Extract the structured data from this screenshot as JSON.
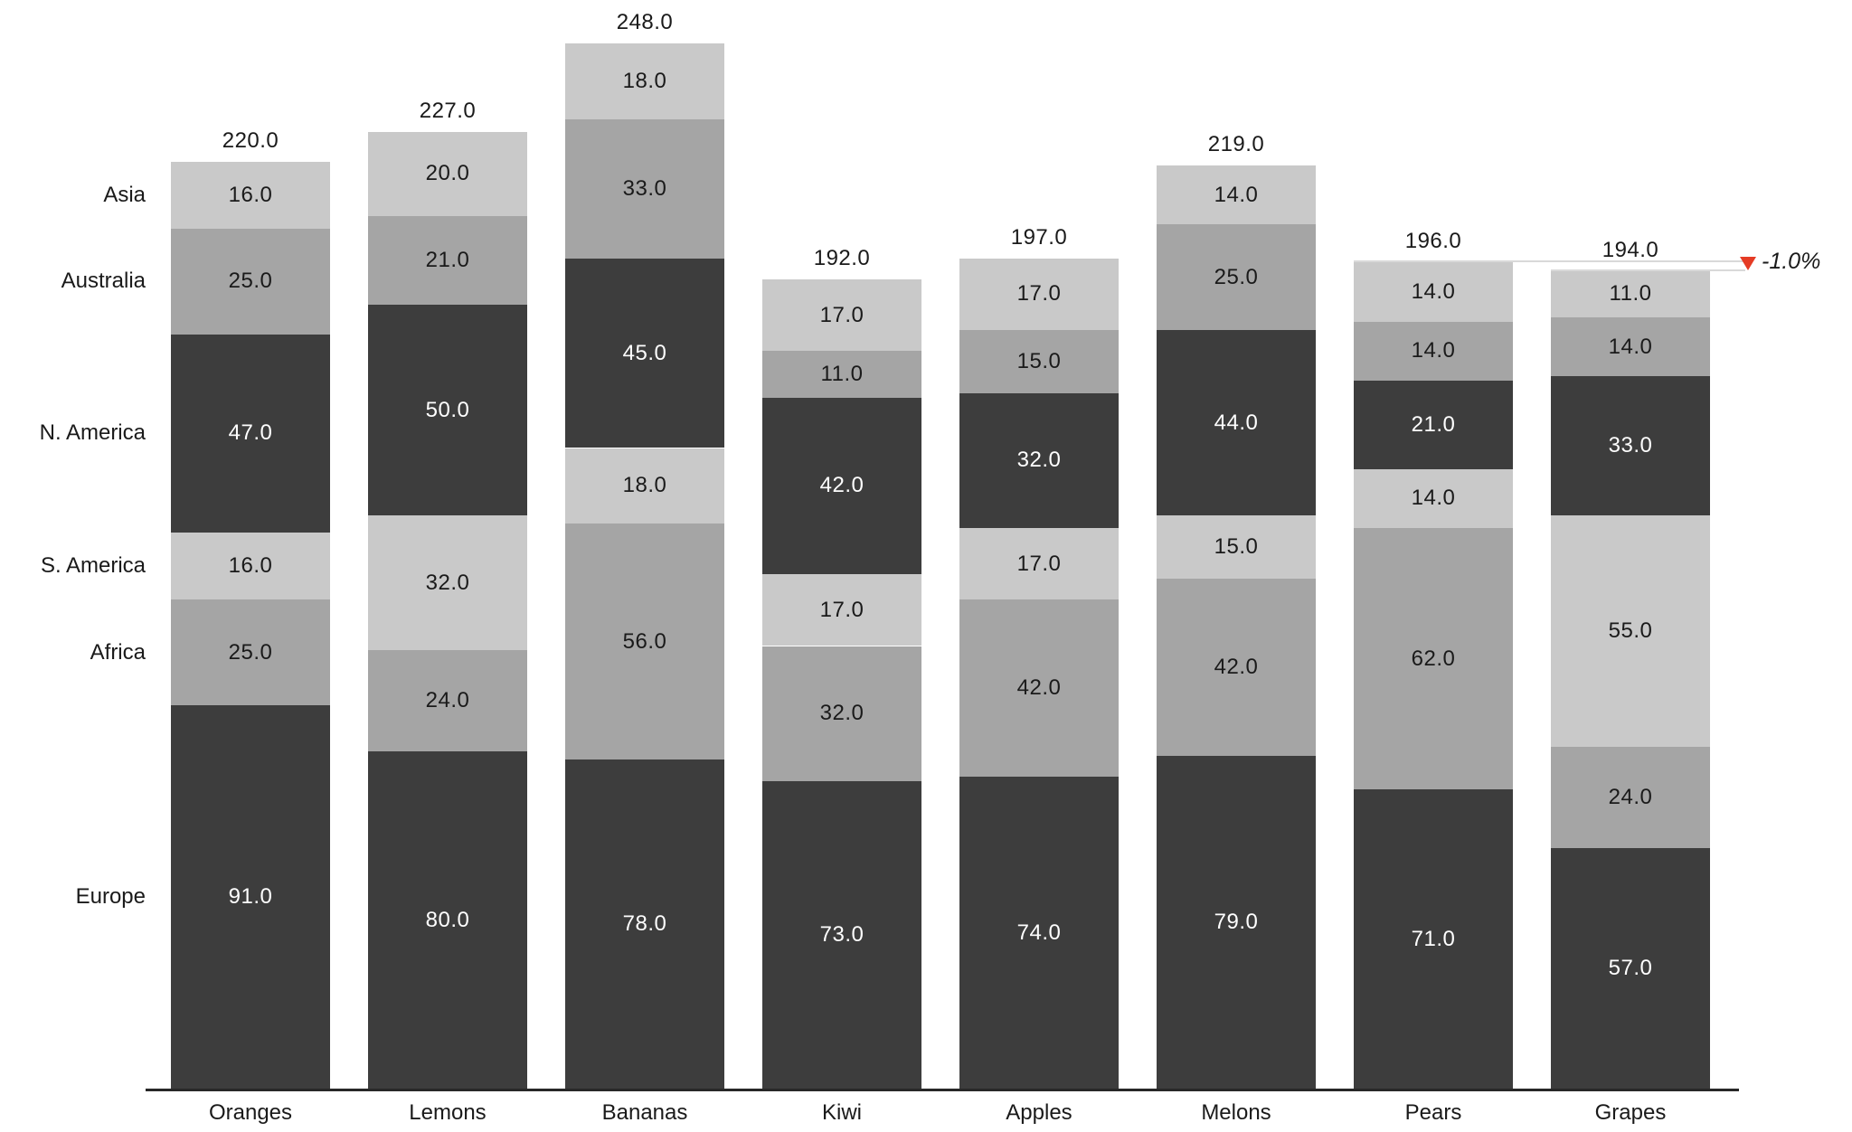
{
  "chart_data": {
    "type": "bar",
    "subtype": "stacked-column",
    "title": "",
    "xlabel": "",
    "ylabel": "",
    "grid": false,
    "legend_position": "left-as-row-labels",
    "ylim": [
      0,
      248
    ],
    "decimals": 1,
    "categories": [
      "Oranges",
      "Lemons",
      "Bananas",
      "Kiwi",
      "Apples",
      "Melons",
      "Pears",
      "Grapes"
    ],
    "series": [
      {
        "name": "Europe",
        "color": "#3d3d3d",
        "text_color": "#ffffff",
        "values": [
          91,
          80,
          78,
          73,
          74,
          79,
          71,
          57
        ]
      },
      {
        "name": "Africa",
        "color": "#a5a5a5",
        "text_color": "#1a1a1a",
        "values": [
          25,
          24,
          56,
          32,
          42,
          42,
          62,
          24
        ]
      },
      {
        "name": "S. America",
        "color": "#c9c9c9",
        "text_color": "#1a1a1a",
        "values": [
          16,
          32,
          18,
          17,
          17,
          15,
          14,
          55
        ]
      },
      {
        "name": "N. America",
        "color": "#3d3d3d",
        "text_color": "#ffffff",
        "values": [
          47,
          50,
          45,
          42,
          32,
          44,
          21,
          33
        ]
      },
      {
        "name": "Australia",
        "color": "#a5a5a5",
        "text_color": "#1a1a1a",
        "values": [
          25,
          21,
          33,
          11,
          15,
          25,
          14,
          14
        ]
      },
      {
        "name": "Asia",
        "color": "#c9c9c9",
        "text_color": "#1a1a1a",
        "values": [
          16,
          20,
          18,
          17,
          17,
          14,
          14,
          11
        ]
      }
    ],
    "totals": [
      220,
      227,
      248,
      192,
      197,
      219,
      196,
      194
    ],
    "annotation": {
      "label": "-1.0%",
      "from_category": "Pears",
      "to_category": "Grapes",
      "icon": "triangle-down-icon",
      "color": "#e53b24",
      "line_color": "#d9d9d9"
    },
    "colors": {
      "dark_segment": "#3d3d3d",
      "medium_segment": "#a5a5a5",
      "light_segment": "#c9c9c9",
      "axis": "#282828",
      "label_text": "#1a1a1a",
      "value_text_on_dark": "#ffffff"
    }
  }
}
